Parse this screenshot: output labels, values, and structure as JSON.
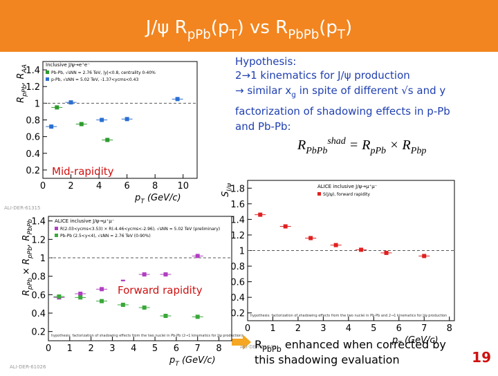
{
  "slide": {
    "title_parts": [
      "J/ψ R",
      "pPb",
      "(p",
      "T",
      ") vs R",
      "PbPb",
      "(p",
      "T",
      ")"
    ],
    "hypothesis": {
      "heading": "Hypothesis:",
      "line1": "2→1 kinematics for J/ψ production",
      "line2_parts": [
        "→ similar x",
        "g",
        " in spite of different √s and y"
      ],
      "factorization1": "factorization of shadowing effects in p-Pb",
      "factorization2": "and Pb-Pb:",
      "formula_parts": [
        "R",
        "PbPb",
        "shad",
        " = R",
        "pPb",
        " × R",
        "Pbp"
      ]
    },
    "labels": {
      "mid": "Mid-rapidity",
      "forward": "Forward rapidity"
    },
    "conclusion_parts": [
      "R",
      "PbPb",
      " enhanced when corrected by",
      "this shadowing evaluation"
    ],
    "page_number": "19"
  },
  "chart_data": [
    {
      "type": "scatter",
      "legend_title": "Inclusive J/ψ→e⁺e⁻",
      "ylabel_parts": [
        "R",
        "pPb",
        ", R",
        "AA"
      ],
      "xlabel_parts": [
        "p",
        "T",
        " (GeV/c)"
      ],
      "xlim": [
        0,
        11
      ],
      "ylim": [
        0.1,
        1.5
      ],
      "xticks": [
        0,
        2,
        4,
        6,
        8,
        10
      ],
      "yticks": [
        0.2,
        0.4,
        0.6,
        0.8,
        1,
        1.2,
        1.4
      ],
      "reference_line": 1,
      "source": "ALI-DER-61315",
      "series": [
        {
          "name": "Pb-Pb, √sNN = 2.76 TeV, |y|<0.8, centrality 0-40%",
          "color": "#2e9a2e",
          "x": [
            1.0,
            2.75,
            4.6
          ],
          "values": [
            0.95,
            0.75,
            0.56
          ]
        },
        {
          "name": "p-Pb, √sNN = 5.02 TeV, -1.37<ycms<0.43",
          "color": "#2a6fd1",
          "x": [
            0.6,
            2.0,
            4.2,
            6.0,
            9.6
          ],
          "values": [
            0.72,
            1.01,
            0.8,
            0.81,
            1.05
          ]
        }
      ]
    },
    {
      "type": "scatter",
      "legend_title": "ALICE inclusive J/ψ→μ⁺μ⁻",
      "ylabel_parts": [
        "R",
        "pPb",
        " × R",
        "pPb",
        ", R",
        "PbPb"
      ],
      "xlabel_parts": [
        "p",
        "T",
        " (GeV/c)"
      ],
      "xlim": [
        0,
        8.6
      ],
      "ylim": [
        0.1,
        1.45
      ],
      "xticks": [
        0,
        1,
        2,
        3,
        4,
        5,
        6,
        7,
        8
      ],
      "yticks": [
        0.2,
        0.4,
        0.6,
        0.8,
        1,
        1.2,
        1.4
      ],
      "reference_line": 1,
      "source": "ALI-DER-61026",
      "annotation": "hypothesis: factorization of shadowing effects from the two nuclei in Pb-Pb (2→1 kinematics for J/ψ production)",
      "series": [
        {
          "name": "R(2.03<ycms<3.53) × R(-4.46<ycms<-2.96), √sNN = 5.02 TeV (preliminary)",
          "color": "#b040c0",
          "x": [
            0.5,
            1.5,
            2.5,
            3.5,
            4.5,
            5.5,
            7
          ],
          "values": [
            0.57,
            0.61,
            0.66,
            0.74,
            0.82,
            0.82,
            1.02
          ]
        },
        {
          "name": "Pb-Pb (2.5<y<4), √sNN = 2.76 TeV (0-90%)",
          "color": "#3aa83a",
          "x": [
            0.5,
            1.5,
            2.5,
            3.5,
            4.5,
            5.5,
            7
          ],
          "values": [
            0.58,
            0.57,
            0.53,
            0.49,
            0.46,
            0.37,
            0.36
          ]
        }
      ]
    },
    {
      "type": "scatter",
      "legend_title": "ALICE inclusive J/ψ→μ⁺μ⁻",
      "ylabel_parts": [
        "S",
        "J/ψ"
      ],
      "xlabel_parts": [
        "p",
        "T",
        " (GeV/c)"
      ],
      "xlim": [
        0,
        8.2
      ],
      "ylim": [
        0.1,
        1.9
      ],
      "xticks": [
        0,
        1,
        2,
        3,
        4,
        5,
        6,
        7,
        8
      ],
      "yticks": [
        0.2,
        0.4,
        0.6,
        0.8,
        1,
        1.2,
        1.4,
        1.6,
        1.8
      ],
      "reference_line": 1,
      "source": "ALI-DER-61049",
      "annotation": "hypothesis: factorization of shadowing effects from the two nuclei in Pb-Pb and 2→1 kinematics for J/ψ production",
      "series": [
        {
          "name": "S(J/ψ), forward rapidity",
          "color": "#e02020",
          "x": [
            0.5,
            1.5,
            2.5,
            3.5,
            4.5,
            5.5,
            7
          ],
          "values": [
            1.46,
            1.31,
            1.16,
            1.07,
            1.01,
            0.97,
            0.93
          ]
        }
      ]
    }
  ]
}
